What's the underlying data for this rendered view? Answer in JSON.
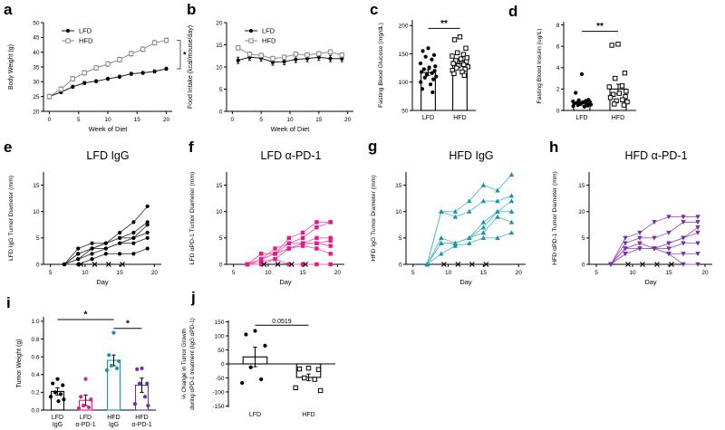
{
  "colors": {
    "black": "#000000",
    "gray": "#8c8c8c",
    "pink": "#e8178a",
    "pink_line": "#ef5fa7",
    "teal": "#1794a8",
    "teal_line": "#56bbcb",
    "purple": "#7030a0",
    "purple_line": "#a05bc8"
  },
  "chart_data": [
    {
      "panel_label": "a",
      "type": "line",
      "xlabel": "Week of Diet",
      "ylabel": "Body Weight (g)",
      "xlim": [
        -1,
        21
      ],
      "ylim": [
        20,
        50
      ],
      "xticks": [
        0,
        5,
        10,
        15,
        20
      ],
      "yticks": [
        20,
        25,
        30,
        35,
        40,
        45,
        50
      ],
      "legend": true,
      "bracket": {
        "y1": 44,
        "y2": 34.4,
        "label": "*"
      },
      "series": [
        {
          "name": "LFD",
          "marker": "circle",
          "color": "#000000",
          "line": "#1a1a1a",
          "err": 0.5,
          "x": [
            0,
            2,
            4,
            6,
            8,
            10,
            12,
            14,
            16,
            18,
            20
          ],
          "y": [
            25,
            26.5,
            28.3,
            29.6,
            30.2,
            31,
            31.7,
            32.7,
            33,
            33.5,
            34.4
          ]
        },
        {
          "name": "HFD",
          "marker": "square-open",
          "color": "#8c8c8c",
          "line": "#8c8c8c",
          "err": 0.8,
          "x": [
            0,
            2,
            4,
            6,
            8,
            10,
            12,
            14,
            16,
            18,
            20
          ],
          "y": [
            25,
            27.5,
            31,
            33,
            34.7,
            36,
            37.5,
            39.5,
            41,
            43.2,
            44
          ]
        }
      ]
    },
    {
      "panel_label": "b",
      "type": "line",
      "xlabel": "Week of Diet",
      "ylabel": "Food Intake (kcal/mouse/day)",
      "xlim": [
        -1,
        21
      ],
      "ylim": [
        0,
        20
      ],
      "xticks": [
        0,
        5,
        10,
        15,
        20
      ],
      "yticks": [
        0,
        5,
        10,
        15,
        20
      ],
      "legend": true,
      "series": [
        {
          "name": "LFD",
          "marker": "circle",
          "color": "#000000",
          "line": "#1a1a1a",
          "err": 0.7,
          "x": [
            1,
            3,
            5,
            7,
            9,
            11,
            13,
            15,
            17,
            19
          ],
          "y": [
            11.5,
            12.2,
            12.0,
            11.1,
            11.2,
            11.7,
            11.9,
            12.2,
            11.9,
            11.9
          ]
        },
        {
          "name": "HFD",
          "marker": "square-open",
          "color": "#8c8c8c",
          "line": "#8c8c8c",
          "err": 0.5,
          "x": [
            1,
            3,
            5,
            7,
            9,
            11,
            13,
            15,
            17,
            19
          ],
          "y": [
            14.3,
            12.9,
            12.6,
            11.9,
            12.2,
            12.9,
            12.7,
            13.0,
            13.4,
            12.7
          ]
        }
      ]
    },
    {
      "panel_label": "c",
      "type": "bar",
      "ylabel": "Fasting Blood Glucose (mg/dL)",
      "ylim": [
        50,
        210
      ],
      "yticks": [
        50,
        100,
        150,
        200
      ],
      "baseline": 50,
      "groups": [
        {
          "label": [
            "LFD"
          ],
          "bar": 117,
          "err": 5,
          "color": "#000000",
          "marker": "circle",
          "points": [
            160,
            155,
            148,
            145,
            140,
            133,
            128,
            126,
            123,
            120,
            118,
            116,
            113,
            110,
            108,
            105,
            100,
            96,
            88,
            82
          ]
        },
        {
          "label": [
            "HFD"
          ],
          "bar": 137,
          "err": 4,
          "color": "#000000",
          "marker": "square-open",
          "points": [
            180,
            175,
            160,
            152,
            149,
            146,
            143,
            141,
            138,
            136,
            133,
            131,
            129,
            127,
            125,
            123,
            121,
            118,
            115,
            112
          ]
        }
      ],
      "sigs": [
        {
          "i1": 0,
          "i2": 1,
          "y": 195,
          "label": "**"
        }
      ]
    },
    {
      "panel_label": "d",
      "type": "bar",
      "ylabel": "Fasting Blood Insulin (ug/L)",
      "ylim": [
        0,
        8.3
      ],
      "yticks": [
        0,
        2,
        4,
        6,
        8
      ],
      "baseline": 0,
      "groups": [
        {
          "label": [
            "LFD"
          ],
          "bar": 0.65,
          "err": 0.15,
          "color": "#000000",
          "marker": "circle",
          "points": [
            3.4,
            1.65,
            1.0,
            0.95,
            0.9,
            0.85,
            0.8,
            0.78,
            0.72,
            0.7,
            0.65,
            0.62,
            0.6,
            0.55,
            0.5,
            0.45,
            0.4,
            0.35
          ]
        },
        {
          "label": [
            "HFD"
          ],
          "bar": 2.0,
          "err": 0.45,
          "color": "#000000",
          "marker": "square-open",
          "points": [
            6.2,
            6.1,
            3.5,
            3.0,
            2.3,
            2.2,
            1.8,
            1.6,
            1.5,
            1.3,
            1.2,
            1.0,
            0.9,
            0.8,
            0.6,
            0.5
          ]
        }
      ],
      "sigs": [
        {
          "i1": 0,
          "i2": 1,
          "y": 7.4,
          "label": "**"
        }
      ]
    },
    {
      "panel_label": "e",
      "type": "spider",
      "title": "LFD IgG",
      "xlabel": "Day",
      "ylabel": "LFD IgG Tumor Diameter (mm)",
      "xlim": [
        4,
        21
      ],
      "ylim": [
        0,
        17.5
      ],
      "xticks": [
        5,
        10,
        15,
        20
      ],
      "yticks": [
        0,
        5,
        10,
        15
      ],
      "x": [
        7,
        9,
        11,
        13,
        15,
        17,
        19
      ],
      "marker": "circle",
      "color": "#000000",
      "line": "#3c3c3c",
      "lines": [
        [
          0,
          3,
          4,
          4,
          6,
          8,
          11
        ],
        [
          0,
          2,
          3,
          4,
          5,
          6,
          8
        ],
        [
          0,
          2,
          3,
          3,
          4,
          5,
          7.5
        ],
        [
          0,
          1,
          3,
          4,
          5,
          5,
          6
        ],
        [
          0,
          1,
          2,
          3,
          4,
          4,
          5
        ],
        [
          0,
          0,
          1,
          2,
          2,
          2,
          3
        ]
      ],
      "xmarks": [
        9,
        11,
        13,
        15
      ]
    },
    {
      "panel_label": "f",
      "type": "spider",
      "title": "LFD α-PD-1",
      "xlabel": "Day",
      "ylabel": "LFD αPD-1 Tumor Diameter (mm)",
      "xlim": [
        4,
        21
      ],
      "ylim": [
        0,
        17.5
      ],
      "xticks": [
        5,
        10,
        15,
        20
      ],
      "yticks": [
        0,
        5,
        10,
        15
      ],
      "x": [
        7,
        9,
        11,
        13,
        15,
        17,
        19
      ],
      "marker": "square",
      "color": "#e8178a",
      "line": "#ef5fa7",
      "lines": [
        [
          0,
          2,
          2,
          5,
          6,
          8,
          8
        ],
        [
          0,
          1,
          2,
          4,
          5,
          7,
          8
        ],
        [
          0,
          1,
          3,
          4,
          4,
          5,
          5
        ],
        [
          0,
          0,
          1,
          3,
          4,
          4,
          4.5
        ],
        [
          0,
          1,
          2,
          3,
          4,
          4,
          3.5
        ],
        [
          0,
          2,
          2,
          3,
          3.5,
          3,
          2
        ],
        [
          0,
          0.5,
          1,
          0,
          0,
          0,
          0
        ]
      ],
      "xmarks": [
        9,
        11,
        13,
        15
      ]
    },
    {
      "panel_label": "g",
      "type": "spider",
      "title": "HFD IgG",
      "xlabel": "Day",
      "ylabel": "HFD IgG Tumor Diameter (mm)",
      "xlim": [
        4,
        21
      ],
      "ylim": [
        0,
        17.5
      ],
      "xticks": [
        5,
        10,
        15,
        20
      ],
      "yticks": [
        0,
        5,
        10,
        15
      ],
      "x": [
        7,
        9,
        11,
        13,
        15,
        17,
        19
      ],
      "marker": "tri-up",
      "color": "#1794a8",
      "line": "#56bbcb",
      "lines": [
        [
          0,
          10,
          10,
          12,
          15,
          14,
          17
        ],
        [
          0,
          10,
          9,
          10,
          12,
          12,
          13
        ],
        [
          0,
          5,
          4,
          5,
          8,
          10,
          12
        ],
        [
          0,
          4,
          4,
          5,
          7,
          10,
          10
        ],
        [
          0,
          4,
          4,
          5,
          6,
          9,
          8
        ],
        [
          0,
          2,
          3.5,
          4,
          5,
          5,
          6
        ]
      ],
      "xmarks": [
        9,
        11,
        13,
        15
      ]
    },
    {
      "panel_label": "h",
      "type": "spider",
      "title": "HFD α-PD-1",
      "xlabel": "Day",
      "ylabel": "HFD αPD-1 Tumor Diameter (mm)",
      "xlim": [
        4,
        21
      ],
      "ylim": [
        0,
        17.5
      ],
      "xticks": [
        5,
        10,
        15,
        20
      ],
      "yticks": [
        0,
        5,
        10,
        15
      ],
      "x": [
        7,
        9,
        11,
        13,
        15,
        17,
        19
      ],
      "marker": "tri-down",
      "color": "#7030a0",
      "line": "#a05bc8",
      "lines": [
        [
          0,
          5,
          6,
          8,
          9,
          9,
          9
        ],
        [
          0,
          4,
          5,
          5,
          6,
          8,
          8
        ],
        [
          0,
          3,
          4,
          3,
          4,
          5,
          7
        ],
        [
          0,
          3,
          3,
          3,
          4,
          5,
          6
        ],
        [
          0,
          2,
          3,
          3,
          3,
          4,
          4
        ],
        [
          0,
          2,
          3,
          3,
          2,
          2,
          2
        ],
        [
          0,
          3,
          4,
          3,
          2,
          0,
          0
        ]
      ],
      "xmarks": [
        9,
        11,
        13,
        15
      ]
    },
    {
      "panel_label": "i",
      "type": "bar",
      "ylabel": "Tumor Weight (g)",
      "ylim": [
        0,
        1.05
      ],
      "yticks": [
        0,
        0.2,
        0.4,
        0.6,
        0.8,
        1.0
      ],
      "ydec": 1,
      "baseline": 0,
      "groups": [
        {
          "label": [
            "LFD",
            "IgG"
          ],
          "bar": 0.21,
          "err": 0.04,
          "color": "#000000",
          "marker": "circle",
          "points": [
            0.35,
            0.3,
            0.28,
            0.2,
            0.18,
            0.15,
            0.12,
            0.1
          ]
        },
        {
          "label": [
            "LFD",
            "α-PD-1"
          ],
          "bar": 0.11,
          "err": 0.06,
          "color": "#e8178a",
          "marker": "circle",
          "points": [
            0.35,
            0.15,
            0.12,
            0.05,
            0.03,
            0.02
          ]
        },
        {
          "label": [
            "HFD",
            "IgG"
          ],
          "bar": 0.56,
          "err": 0.06,
          "color": "#1794a8",
          "marker": "circle",
          "points": [
            0.87,
            0.62,
            0.55,
            0.5,
            0.47,
            0.45
          ]
        },
        {
          "label": [
            "HFD",
            "α-PD-1"
          ],
          "bar": 0.28,
          "err": 0.08,
          "color": "#7030a0",
          "marker": "circle",
          "points": [
            0.47,
            0.46,
            0.3,
            0.3,
            0.15,
            0.07,
            0.05
          ]
        }
      ],
      "sigs": [
        {
          "i1": 0,
          "i2": 2,
          "y": 1.02,
          "label": "*"
        },
        {
          "i1": 2,
          "i2": 3,
          "y": 0.92,
          "label": "*"
        }
      ]
    },
    {
      "panel_label": "j",
      "type": "bar",
      "ylabel": [
        "% Change in Tumor Growth",
        "during αPD-1 treatment (IgG:αPD-1)"
      ],
      "ylim": [
        -155,
        155
      ],
      "yticks": [
        -150,
        -100,
        -50,
        0,
        50,
        100,
        150
      ],
      "baseline": 0,
      "xaxis_at": 0,
      "groups": [
        {
          "label": [
            "LFD"
          ],
          "bar": 25,
          "err": 35,
          "color": "#000000",
          "marker": "circle",
          "points": [
            118,
            105,
            65,
            -12,
            -55,
            -68
          ]
        },
        {
          "label": [
            "HFD"
          ],
          "bar": -48,
          "err": 12,
          "color": "#000000",
          "marker": "square-open",
          "points": [
            -15,
            -18,
            -20,
            -50,
            -55,
            -85,
            -95
          ]
        }
      ],
      "sigs": [
        {
          "i1": 0,
          "i2": 1,
          "y": 138,
          "label": "0.0519"
        }
      ]
    }
  ]
}
